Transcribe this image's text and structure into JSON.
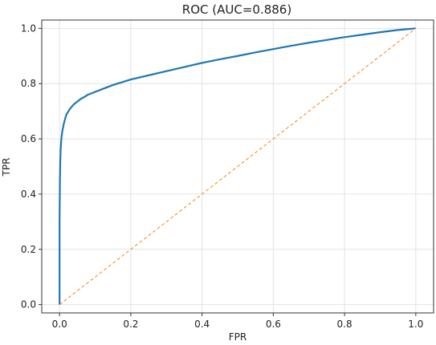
{
  "chart_data": {
    "type": "line",
    "title": "ROC (AUC=0.886)",
    "xlabel": "FPR",
    "ylabel": "TPR",
    "xlim": [
      -0.05,
      1.05
    ],
    "ylim": [
      -0.03,
      1.03
    ],
    "xticks": [
      "0.0",
      "0.2",
      "0.4",
      "0.6",
      "0.8",
      "1.0"
    ],
    "yticks": [
      "0.0",
      "0.2",
      "0.4",
      "0.6",
      "0.8",
      "1.0"
    ],
    "grid": true,
    "legend": "none",
    "series": [
      {
        "color": "#1f77b4",
        "style": "solid",
        "x": [
          0.0,
          0.0,
          0.001,
          0.002,
          0.003,
          0.005,
          0.008,
          0.012,
          0.016,
          0.02,
          0.03,
          0.04,
          0.05,
          0.06,
          0.07,
          0.08,
          0.1,
          0.12,
          0.15,
          0.2,
          0.25,
          0.3,
          0.35,
          0.4,
          0.45,
          0.5,
          0.55,
          0.6,
          0.65,
          0.7,
          0.75,
          0.8,
          0.85,
          0.9,
          0.95,
          1.0
        ],
        "y": [
          0.0,
          0.3,
          0.45,
          0.52,
          0.56,
          0.6,
          0.63,
          0.655,
          0.675,
          0.69,
          0.71,
          0.725,
          0.735,
          0.745,
          0.752,
          0.76,
          0.77,
          0.78,
          0.795,
          0.815,
          0.83,
          0.845,
          0.86,
          0.875,
          0.888,
          0.9,
          0.913,
          0.925,
          0.937,
          0.948,
          0.958,
          0.968,
          0.977,
          0.986,
          0.994,
          1.0
        ]
      },
      {
        "color": "#ff7f0e",
        "style": "dashed",
        "x": [
          0,
          1
        ],
        "y": [
          0,
          1
        ]
      }
    ]
  }
}
